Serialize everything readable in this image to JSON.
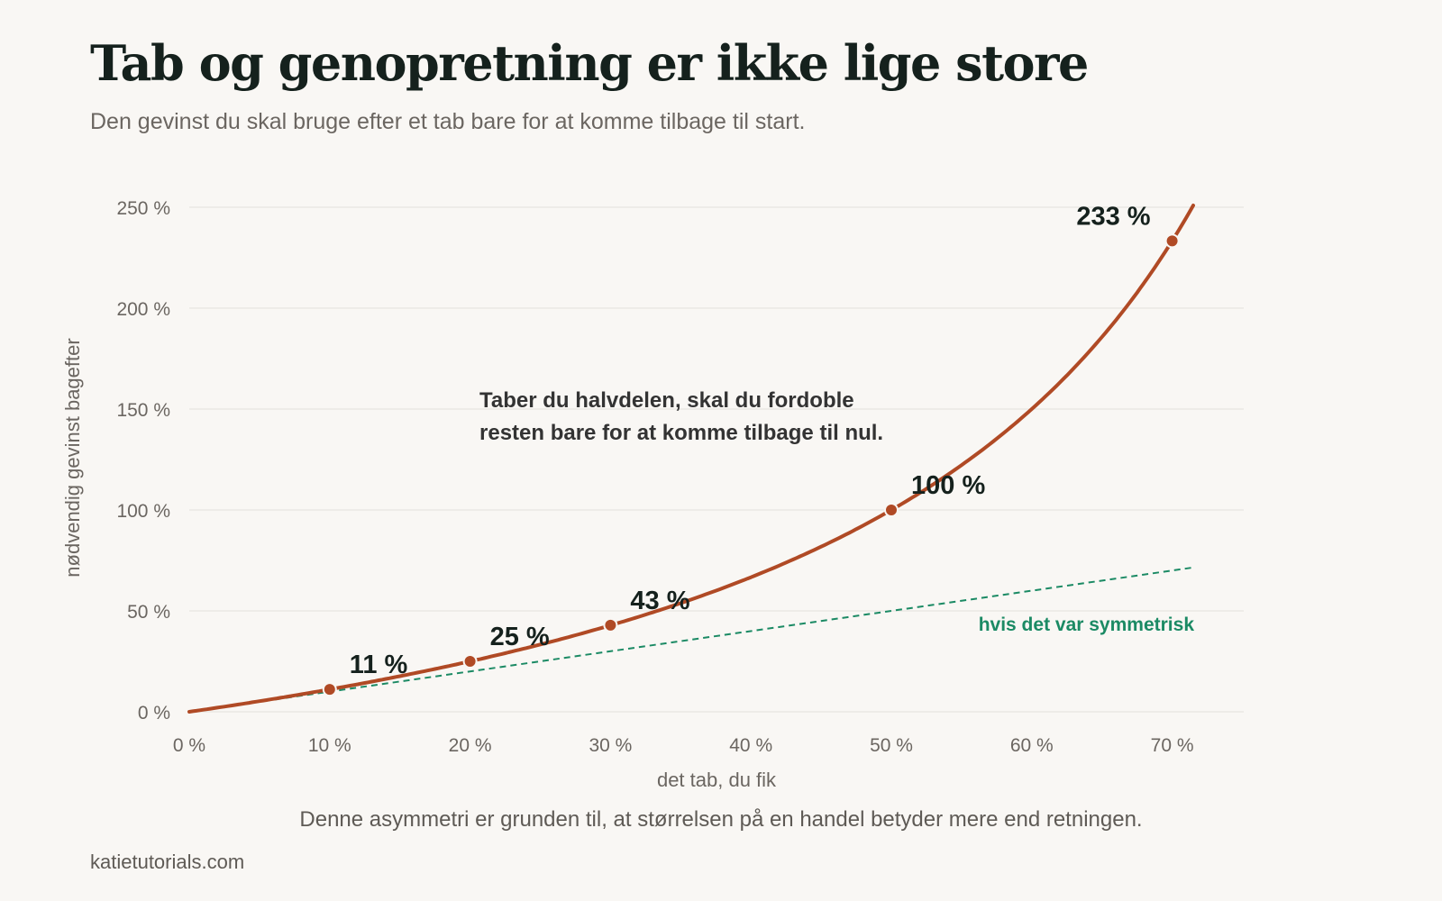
{
  "header": {
    "title": "Tab og genopretning er ikke lige store",
    "subtitle": "Den gevinst du skal bruge efter et tab bare for at komme tilbage til start."
  },
  "footer": {
    "note": "Denne asymmetri er grunden til, at størrelsen på en handel betyder mere end retningen.",
    "source": "katietutorials.com"
  },
  "colors": {
    "background": "#f9f7f4",
    "curve": "#b04a25",
    "symmetric": "#1b8a64",
    "grid": "#e4e1dc",
    "axis_text": "#6b6661",
    "label_text": "#15211d",
    "annotation_text": "#333333"
  },
  "chart_data": {
    "type": "line",
    "xlabel": "det tab, du fik",
    "ylabel": "nødvendig gevinst bagefter",
    "x_unit": "%",
    "y_unit": "%",
    "xlim": [
      0,
      75
    ],
    "ylim": [
      0,
      250
    ],
    "x_ticks": [
      0,
      10,
      20,
      30,
      40,
      50,
      60,
      70
    ],
    "x_tick_labels": [
      "0 %",
      "10 %",
      "20 %",
      "30 %",
      "40 %",
      "50 %",
      "60 %",
      "70 %"
    ],
    "y_ticks": [
      0,
      50,
      100,
      150,
      200,
      250
    ],
    "y_tick_labels": [
      "0 %",
      "50 %",
      "100 %",
      "150 %",
      "200 %",
      "250 %"
    ],
    "grid": true,
    "series": [
      {
        "style": "solid",
        "color": "#b04a25",
        "x": [
          0,
          5,
          10,
          15,
          20,
          25,
          30,
          35,
          40,
          45,
          50,
          55,
          60,
          65,
          70,
          71.5
        ],
        "y": [
          0,
          5.3,
          11.1,
          17.6,
          25,
          33.3,
          42.9,
          53.8,
          66.7,
          81.8,
          100,
          122.2,
          150,
          185.7,
          233.3,
          250.9
        ]
      },
      {
        "name": "hvis det var symmetrisk",
        "style": "dashed",
        "color": "#1b8a64",
        "x": [
          0,
          71.5
        ],
        "y": [
          0,
          71.5
        ]
      }
    ],
    "points": [
      {
        "x": 10,
        "y": 11.1,
        "label": "11 %"
      },
      {
        "x": 20,
        "y": 25,
        "label": "25 %"
      },
      {
        "x": 30,
        "y": 42.9,
        "label": "43 %"
      },
      {
        "x": 50,
        "y": 100,
        "label": "100 %"
      },
      {
        "x": 70,
        "y": 233.3,
        "label": "233 %"
      }
    ],
    "annotation": [
      "Taber du halvdelen, skal du fordoble",
      "resten bare for at komme tilbage til nul."
    ]
  }
}
